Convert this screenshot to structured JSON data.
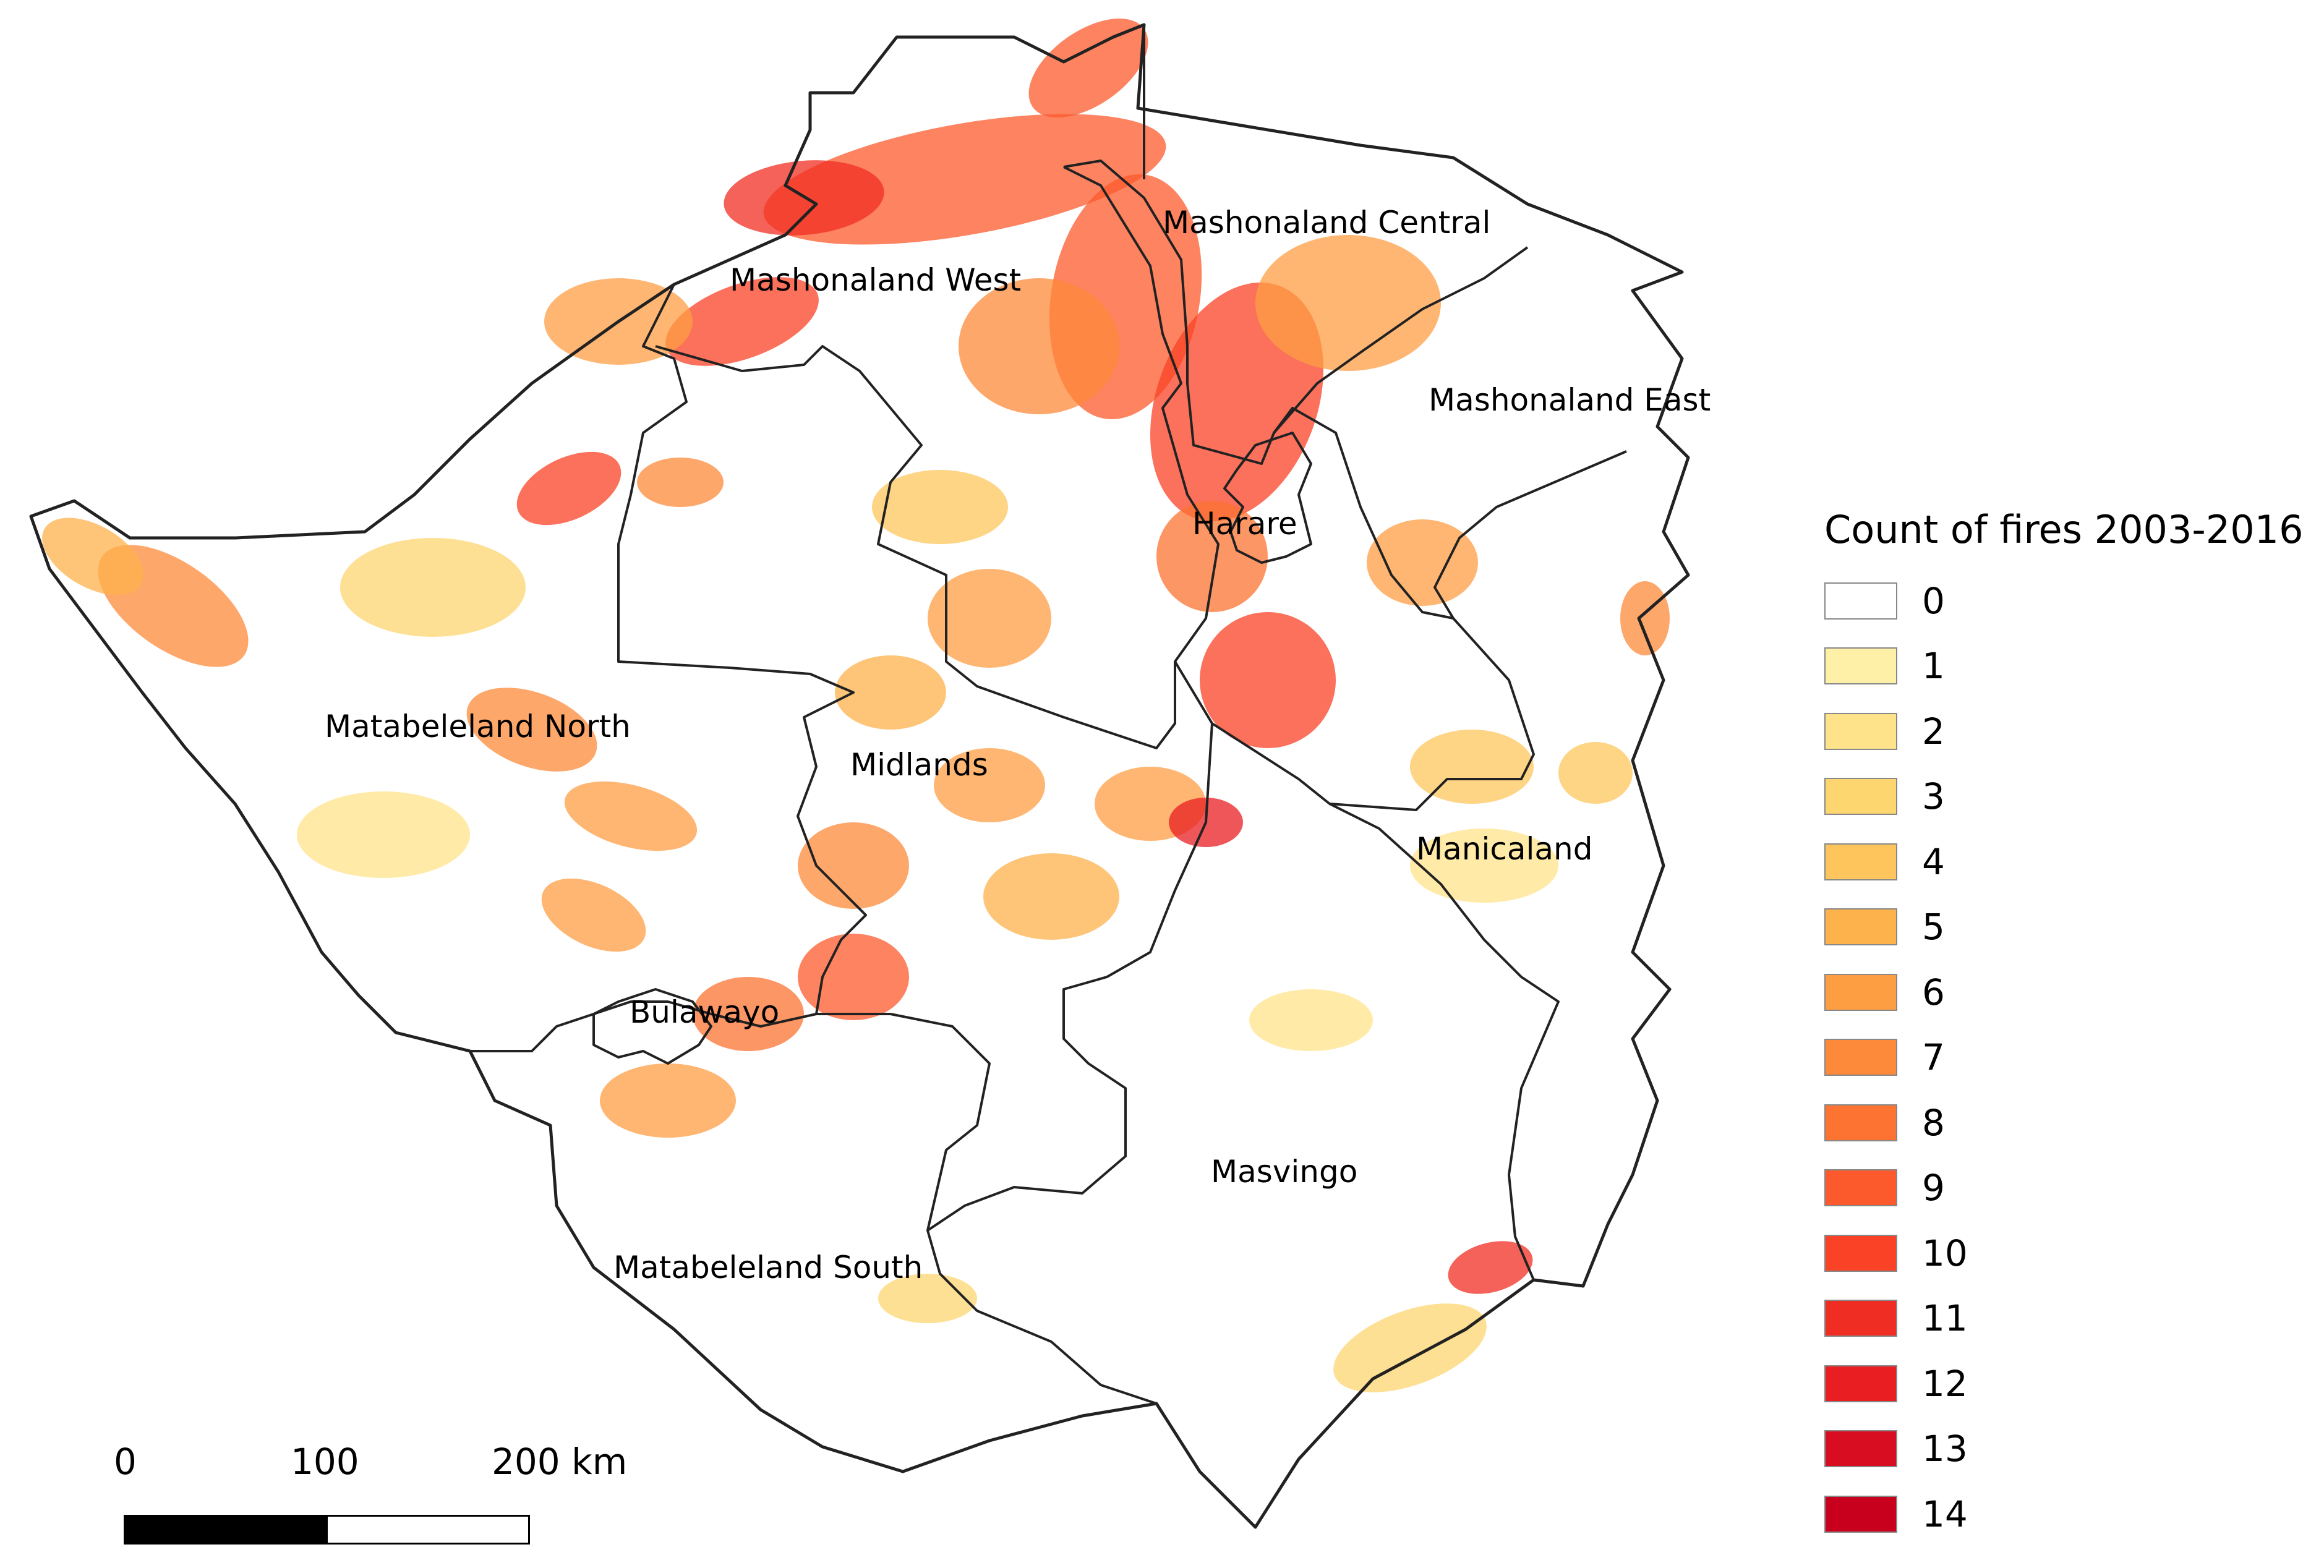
{
  "legend": {
    "title": "Count of fires 2003-2016",
    "classes": [
      {
        "label": "0",
        "color": "#ffffff"
      },
      {
        "label": "1",
        "color": "#fff0a8"
      },
      {
        "label": "2",
        "color": "#ffe38a"
      },
      {
        "label": "3",
        "color": "#fed670"
      },
      {
        "label": "4",
        "color": "#fec55c"
      },
      {
        "label": "5",
        "color": "#feb24c"
      },
      {
        "label": "6",
        "color": "#fd9e43"
      },
      {
        "label": "7",
        "color": "#fd8a3a"
      },
      {
        "label": "8",
        "color": "#fc7332"
      },
      {
        "label": "9",
        "color": "#fc5a2c"
      },
      {
        "label": "10",
        "color": "#f94226"
      },
      {
        "label": "11",
        "color": "#f02d22"
      },
      {
        "label": "12",
        "color": "#e81e22"
      },
      {
        "label": "13",
        "color": "#d80d22"
      },
      {
        "label": "14",
        "color": "#c8001e"
      }
    ]
  },
  "regions": {
    "mashonaland_central": "Mashonaland Central",
    "mashonaland_west": "Mashonaland West",
    "mashonaland_east": "Mashonaland East",
    "harare": "Harare",
    "matabeleland_north": "Matabeleland North",
    "midlands": "Midlands",
    "manicaland": "Manicaland",
    "bulawayo": "Bulawayo",
    "masvingo": "Masvingo",
    "matabeleland_south": "Matabeleland South"
  },
  "scale_bar": {
    "ticks": [
      "0",
      "100",
      "200 km"
    ],
    "colors": [
      "#000000",
      "#ffffff"
    ]
  }
}
